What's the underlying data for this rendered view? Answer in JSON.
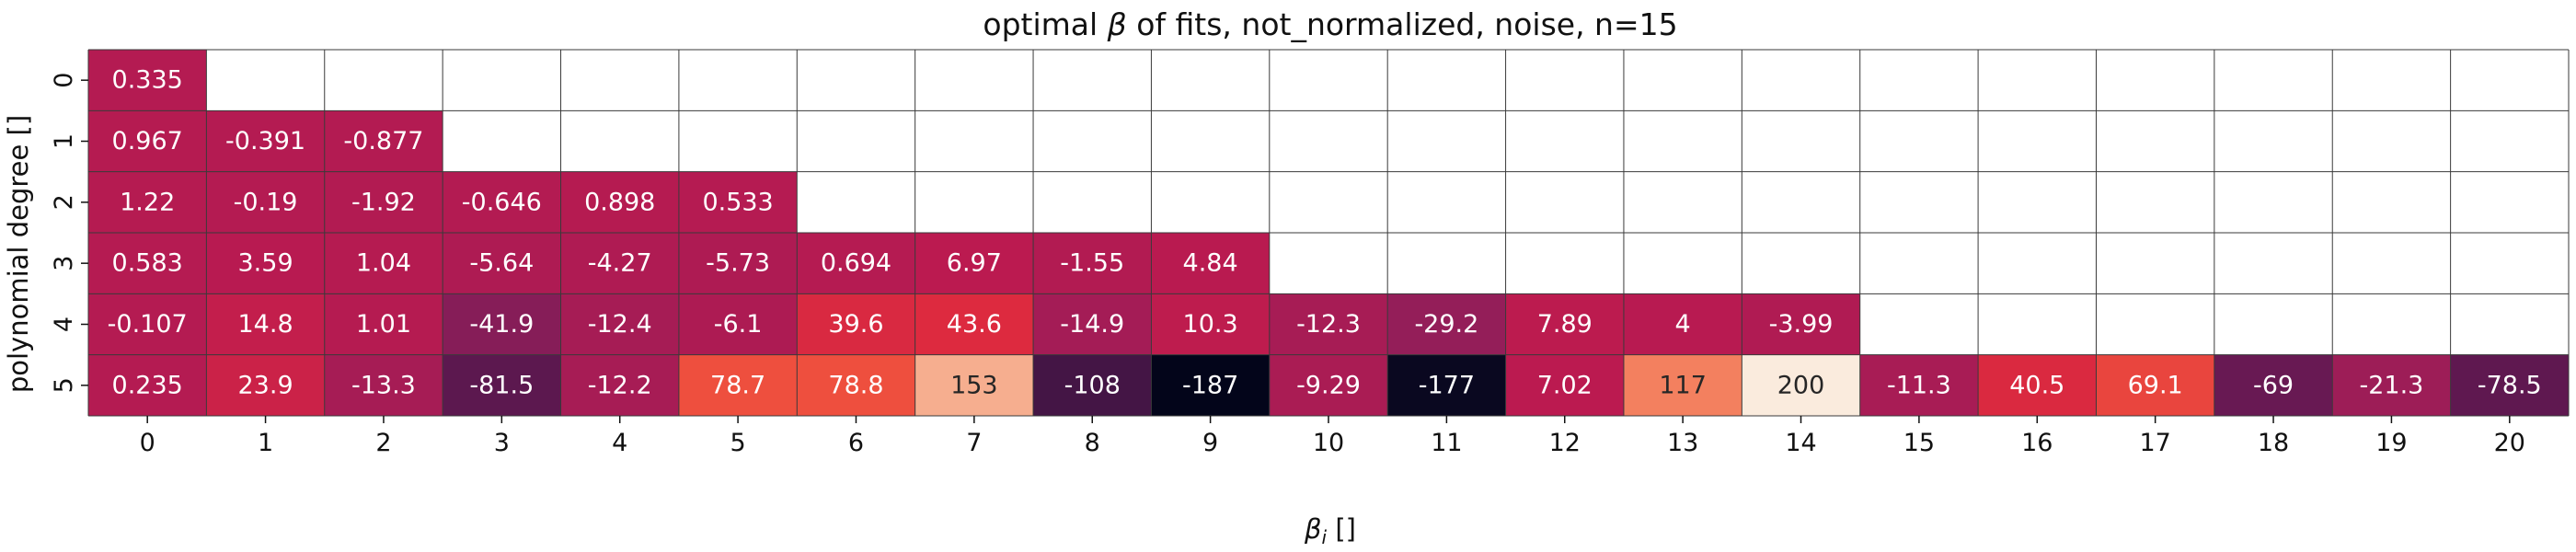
{
  "chart_data": {
    "type": "heatmap",
    "title": "optimal β of fits, not_normalized, noise, n=15",
    "title_parts": {
      "prefix": "optimal ",
      "beta": "β",
      "suffix": " of fits, not_normalized, noise, n=15"
    },
    "xlabel": "β_i []",
    "xlabel_parts": {
      "symbol": "β",
      "subscript": "i",
      "unit": " []"
    },
    "ylabel": "polynomial degree []",
    "x_ticks": [
      "0",
      "1",
      "2",
      "3",
      "4",
      "5",
      "6",
      "7",
      "8",
      "9",
      "10",
      "11",
      "12",
      "13",
      "14",
      "15",
      "16",
      "17",
      "18",
      "19",
      "20"
    ],
    "y_ticks": [
      "0",
      "1",
      "2",
      "3",
      "4",
      "5"
    ],
    "colormap": "rocket",
    "color_range": [
      -187,
      200
    ],
    "grid": true,
    "cells": [
      [
        "0.335"
      ],
      [
        "0.967",
        "-0.391",
        "-0.877"
      ],
      [
        "1.22",
        "-0.19",
        "-1.92",
        "-0.646",
        "0.898",
        "0.533"
      ],
      [
        "0.583",
        "3.59",
        "1.04",
        "-5.64",
        "-4.27",
        "-5.73",
        "0.694",
        "6.97",
        "-1.55",
        "4.84"
      ],
      [
        "-0.107",
        "14.8",
        "1.01",
        "-41.9",
        "-12.4",
        "-6.1",
        "39.6",
        "43.6",
        "-14.9",
        "10.3",
        "-12.3",
        "-29.2",
        "7.89",
        "4",
        "-3.99"
      ],
      [
        "0.235",
        "23.9",
        "-13.3",
        "-81.5",
        "-12.2",
        "78.7",
        "78.8",
        "153",
        "-108",
        "-187",
        "-9.29",
        "-177",
        "7.02",
        "117",
        "200",
        "-11.3",
        "40.5",
        "69.1",
        "-69",
        "-21.3",
        "-78.5"
      ]
    ]
  }
}
